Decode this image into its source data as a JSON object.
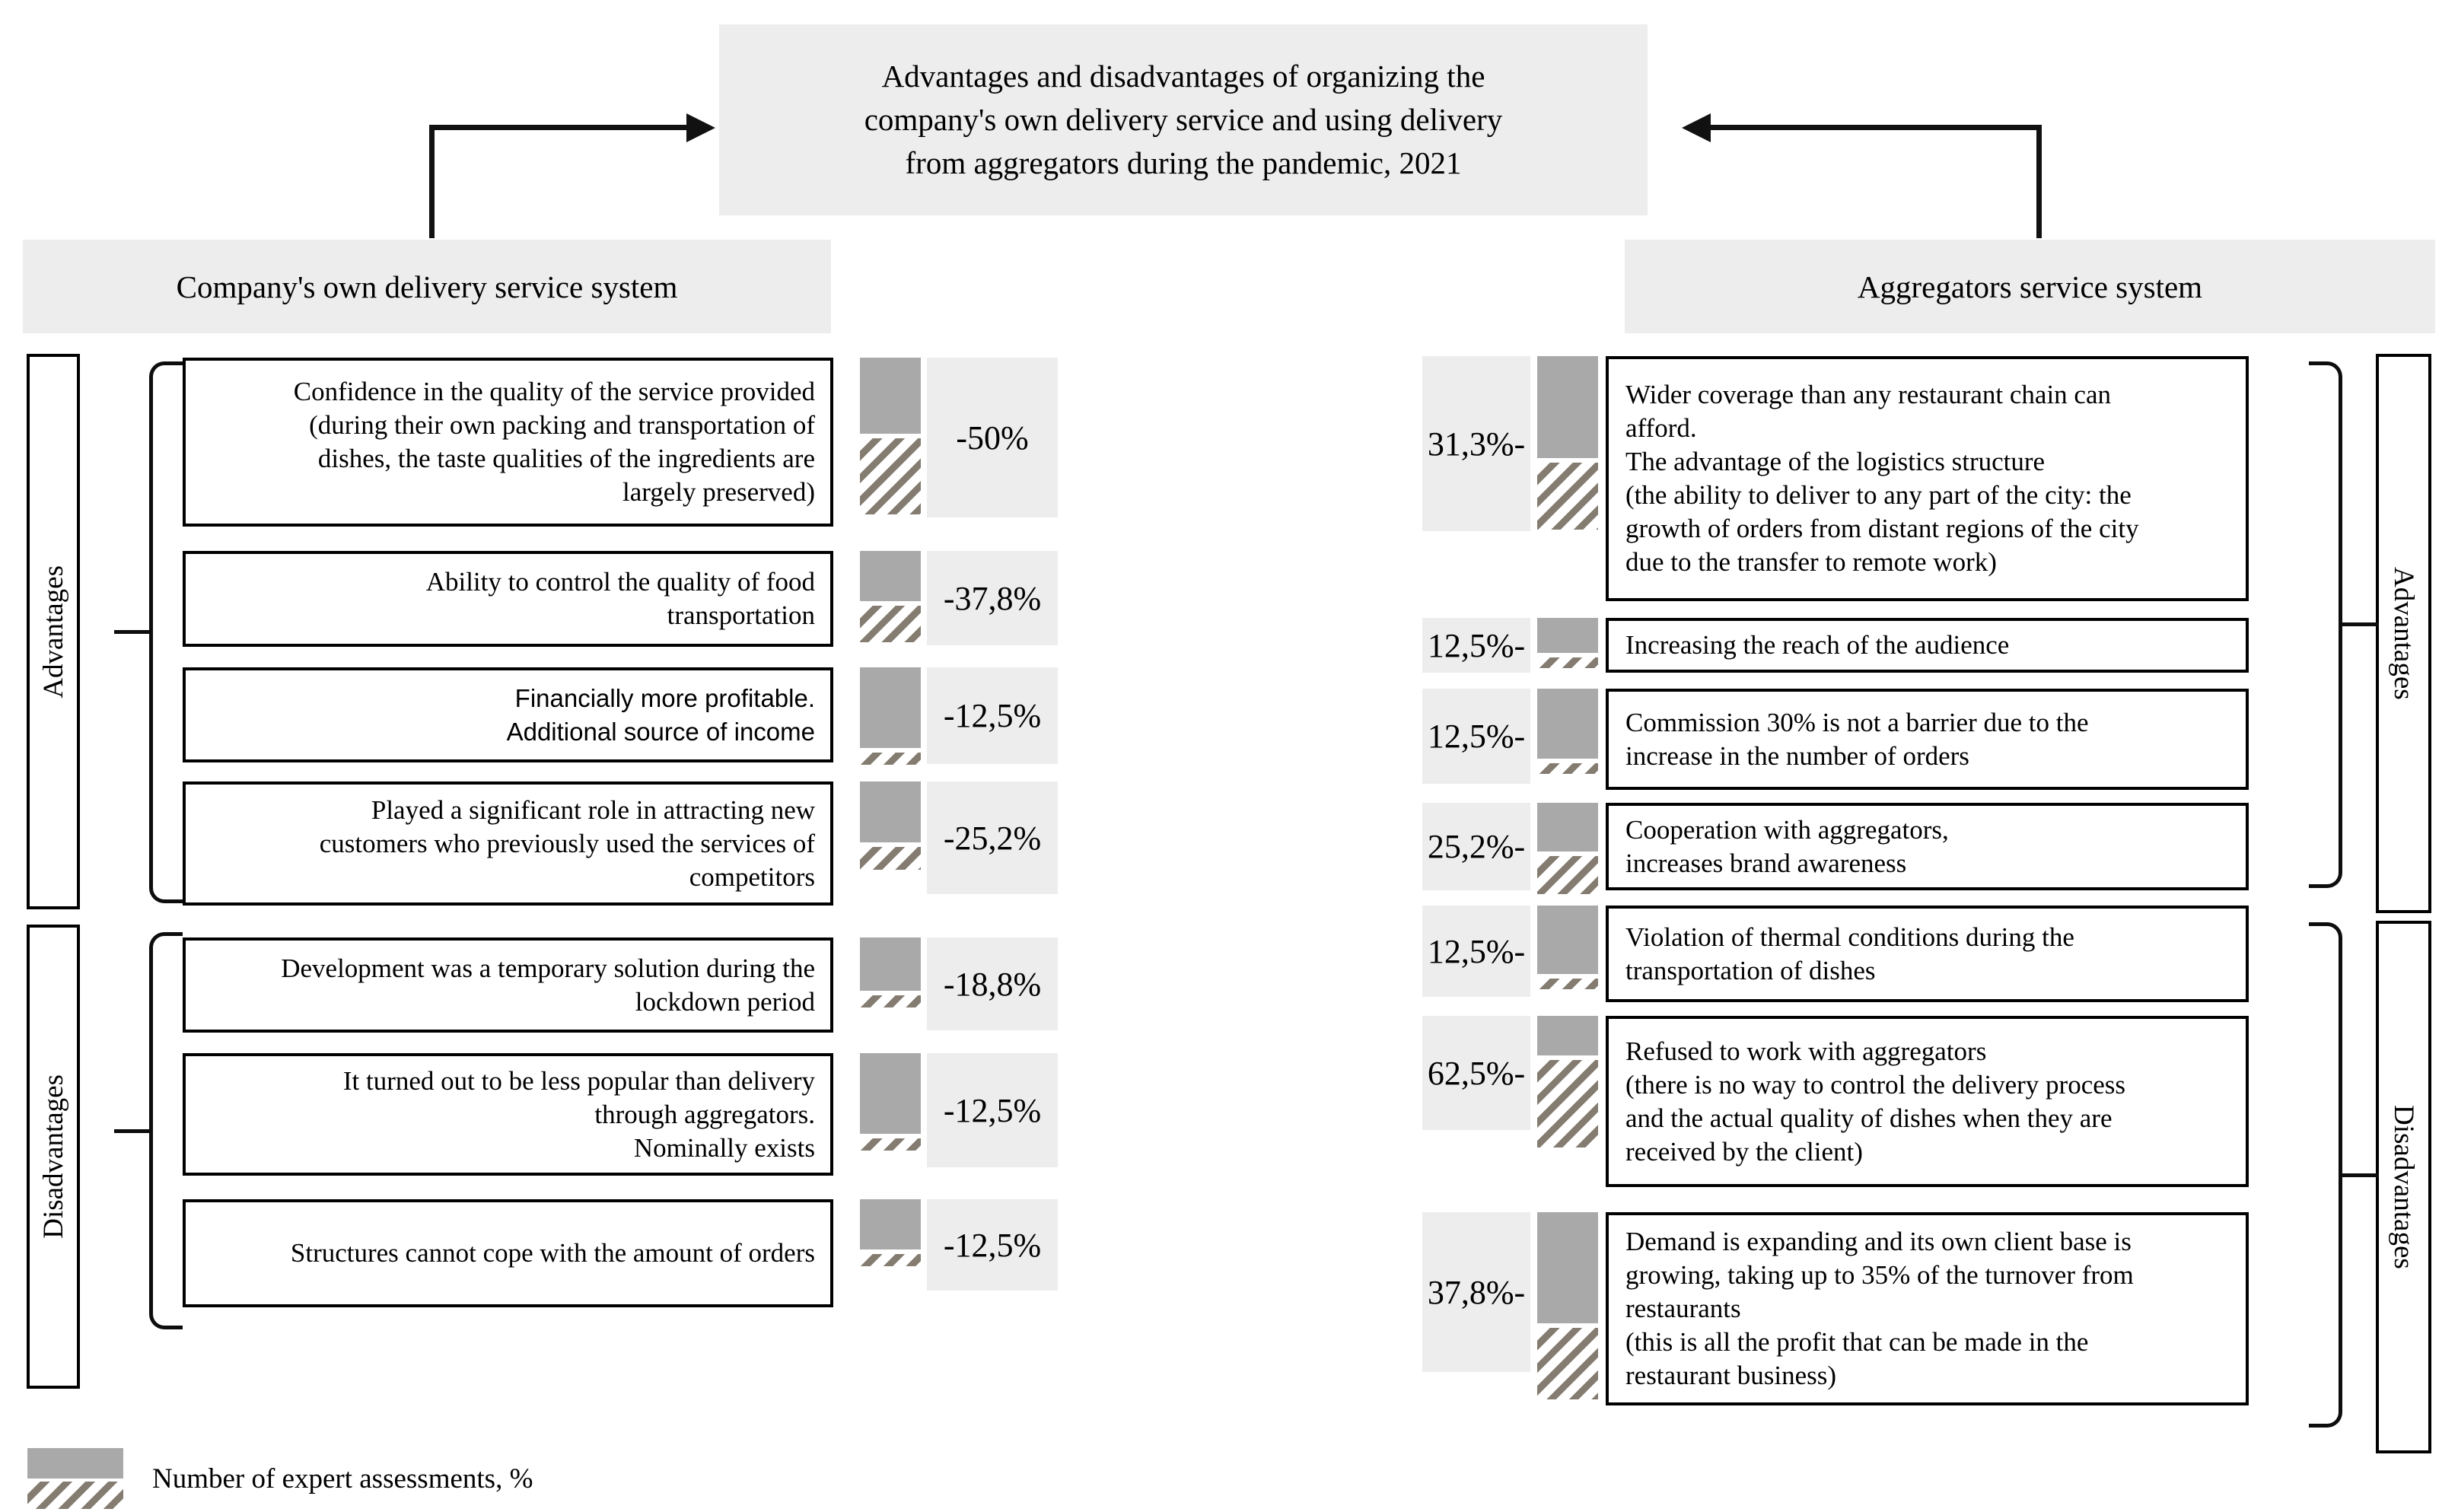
{
  "title": "Advantages and disadvantages of organizing the\ncompany's own delivery service and using delivery\nfrom aggregators during the pandemic, 2021",
  "colors": {
    "panel_bg": "#ededed",
    "bar_solid": "#a9a9a9",
    "hatch_stripe": "#847c70",
    "line": "#111111"
  },
  "legend": {
    "label": "Number of expert assessments, %"
  },
  "left": {
    "header": "Company's own delivery service system",
    "advantages_label": "Advantages",
    "disadvantages_label": "Disadvantages",
    "items": [
      {
        "group": "advantages",
        "value": "-50%",
        "text": "Confidence in the quality of the service provided\n(during their own packing and transportation of\ndishes, the taste qualities of the ingredients are\nlargely preserved)"
      },
      {
        "group": "advantages",
        "value": "-37,8%",
        "text": "Ability to control the quality of food\ntransportation"
      },
      {
        "group": "advantages",
        "value": "-12,5%",
        "font": "sans",
        "text": "Financially more profitable.\nAdditional source of income"
      },
      {
        "group": "advantages",
        "value": "-25,2%",
        "text": "Played a significant role in attracting new\ncustomers who previously used the services of\ncompetitors"
      },
      {
        "group": "disadvantages",
        "value": "-18,8%",
        "text": "Development was a temporary solution during the\nlockdown period"
      },
      {
        "group": "disadvantages",
        "value": "-12,5%",
        "text": "It turned out to be less popular than delivery\nthrough aggregators.\nNominally exists"
      },
      {
        "group": "disadvantages",
        "value": "-12,5%",
        "text": "Structures cannot cope with the amount of orders"
      }
    ]
  },
  "right": {
    "header": "Aggregators service system",
    "advantages_label": "Advantages",
    "disadvantages_label": "Disadvantages",
    "items": [
      {
        "group": "advantages",
        "value": "31,3%-",
        "text": "Wider coverage than any restaurant chain can\nafford.\nThe advantage of the logistics structure\n(the ability to deliver to any part of the city: the\ngrowth of orders from distant regions of the city\ndue to the transfer to remote work)"
      },
      {
        "group": "advantages",
        "value": "12,5%-",
        "text": "Increasing the reach of the audience"
      },
      {
        "group": "advantages",
        "value": "12,5%-",
        "text": "Commission 30% is not a barrier due to the\nincrease in the number of orders"
      },
      {
        "group": "advantages",
        "value": "25,2%-",
        "text": "Cooperation with aggregators,\nincreases brand awareness"
      },
      {
        "group": "disadvantages",
        "value": "12,5%-",
        "text": "Violation of thermal conditions during the\ntransportation of dishes"
      },
      {
        "group": "disadvantages",
        "value": "62,5%-",
        "text": "Refused to work with aggregators\n(there is no way to control the delivery process\nand the actual quality of dishes when they are\nreceived by the client)"
      },
      {
        "group": "disadvantages",
        "value": "37,8%-",
        "text": "Demand is expanding and its own client base is\ngrowing, taking up to 35% of the turnover from\nrestaurants\n(this is all the profit that can be made in the\nrestaurant business)"
      }
    ]
  }
}
